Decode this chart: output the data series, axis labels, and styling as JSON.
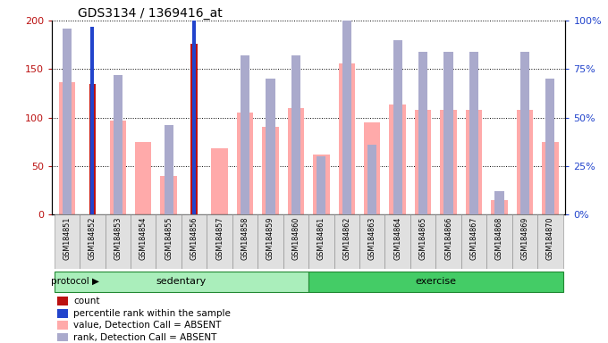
{
  "title": "GDS3134 / 1369416_at",
  "samples": [
    "GSM184851",
    "GSM184852",
    "GSM184853",
    "GSM184854",
    "GSM184855",
    "GSM184856",
    "GSM184857",
    "GSM184858",
    "GSM184859",
    "GSM184860",
    "GSM184861",
    "GSM184862",
    "GSM184863",
    "GSM184864",
    "GSM184865",
    "GSM184866",
    "GSM184867",
    "GSM184868",
    "GSM184869",
    "GSM184870"
  ],
  "count_values": [
    0,
    135,
    0,
    0,
    0,
    176,
    0,
    0,
    0,
    0,
    0,
    0,
    0,
    0,
    0,
    0,
    0,
    0,
    0,
    0
  ],
  "percentile_rank_values": [
    0,
    97,
    0,
    0,
    0,
    108,
    0,
    0,
    0,
    0,
    0,
    0,
    0,
    0,
    0,
    0,
    0,
    0,
    0,
    0
  ],
  "absent_value_values": [
    136,
    0,
    97,
    75,
    40,
    0,
    68,
    105,
    90,
    110,
    62,
    156,
    95,
    113,
    108,
    108,
    108,
    15,
    108,
    75
  ],
  "absent_rank_values": [
    96,
    0,
    72,
    0,
    46,
    0,
    0,
    82,
    70,
    82,
    30,
    100,
    36,
    90,
    84,
    84,
    84,
    12,
    84,
    70
  ],
  "ylim_left": [
    0,
    200
  ],
  "ylim_right": [
    0,
    100
  ],
  "yticks_left": [
    0,
    50,
    100,
    150,
    200
  ],
  "yticks_right": [
    0,
    25,
    50,
    75,
    100
  ],
  "ytick_labels_left": [
    "0",
    "50",
    "100",
    "150",
    "200"
  ],
  "ytick_labels_right": [
    "0%",
    "25%",
    "50%",
    "75%",
    "100%"
  ],
  "color_count": "#bb1111",
  "color_percentile": "#2244cc",
  "color_absent_value": "#ffaaaa",
  "color_absent_rank": "#aaaacc",
  "color_group_sedentary": "#aaeebb",
  "color_group_exercise": "#44cc66",
  "legend_items": [
    {
      "label": "count",
      "color": "#bb1111"
    },
    {
      "label": "percentile rank within the sample",
      "color": "#2244cc"
    },
    {
      "label": "value, Detection Call = ABSENT",
      "color": "#ffaaaa"
    },
    {
      "label": "rank, Detection Call = ABSENT",
      "color": "#aaaacc"
    }
  ]
}
